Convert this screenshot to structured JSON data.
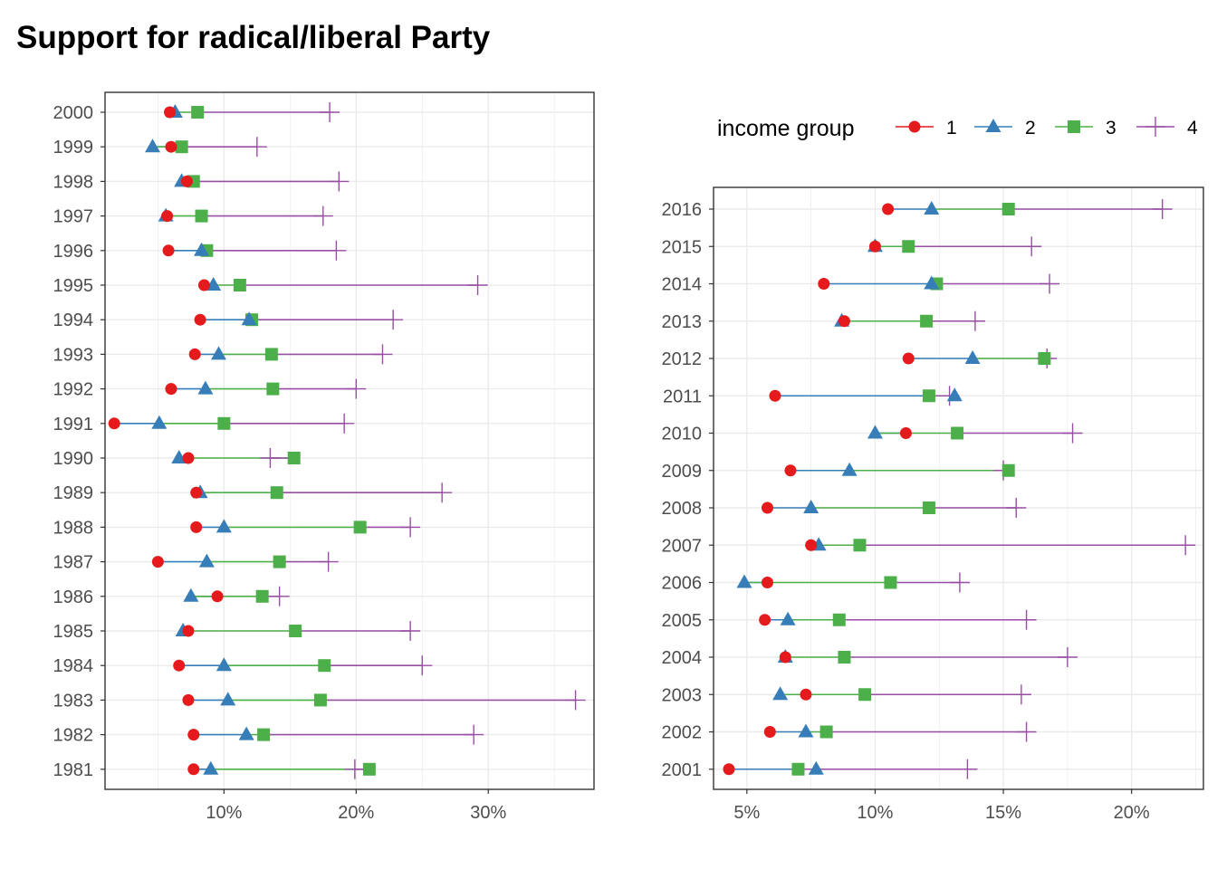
{
  "title": "Support for radical/liberal Party",
  "colors": {
    "1": "#E41A1C",
    "2": "#377EB8",
    "3": "#4DAF4A",
    "4": "#984EA3"
  },
  "legend": {
    "title": "income group",
    "items": [
      "1",
      "2",
      "3",
      "4"
    ]
  },
  "chart_data": [
    {
      "type": "dumbbell",
      "title": "",
      "xlabel": "",
      "ylabel": "",
      "xlim": [
        0.01,
        0.38
      ],
      "xticks": [
        0.1,
        0.2,
        0.3
      ],
      "xtick_labels": [
        "10%",
        "20%",
        "30%"
      ],
      "years": [
        "2000",
        "1999",
        "1998",
        "1997",
        "1996",
        "1995",
        "1994",
        "1993",
        "1992",
        "1991",
        "1990",
        "1989",
        "1988",
        "1987",
        "1986",
        "1985",
        "1984",
        "1983",
        "1982",
        "1981"
      ],
      "series": [
        {
          "name": "1",
          "shape": "circle",
          "values": [
            0.059,
            0.06,
            0.072,
            0.057,
            0.058,
            0.085,
            0.082,
            0.078,
            0.06,
            0.017,
            0.073,
            0.079,
            0.079,
            0.05,
            0.095,
            0.073,
            0.066,
            0.073,
            0.077,
            0.077
          ]
        },
        {
          "name": "2",
          "shape": "triangle",
          "values": [
            0.063,
            0.046,
            0.068,
            0.056,
            0.083,
            0.092,
            0.119,
            0.096,
            0.086,
            0.051,
            0.066,
            0.082,
            0.1,
            0.087,
            0.075,
            0.069,
            0.1,
            0.103,
            0.117,
            0.09
          ]
        },
        {
          "name": "3",
          "shape": "square",
          "values": [
            0.08,
            0.068,
            0.077,
            0.083,
            0.087,
            0.112,
            0.121,
            0.136,
            0.137,
            0.1,
            0.153,
            0.14,
            0.203,
            0.142,
            0.129,
            0.154,
            0.176,
            0.173,
            0.13,
            0.21
          ]
        },
        {
          "name": "4",
          "shape": "plus",
          "values": [
            0.18,
            0.125,
            0.187,
            0.175,
            0.185,
            0.292,
            0.228,
            0.22,
            0.2,
            0.191,
            0.135,
            0.265,
            0.241,
            0.179,
            0.142,
            0.241,
            0.25,
            0.366,
            0.289,
            0.199
          ]
        }
      ]
    },
    {
      "type": "dumbbell",
      "title": "",
      "xlabel": "",
      "ylabel": "",
      "xlim": [
        0.037,
        0.228
      ],
      "xticks": [
        0.05,
        0.1,
        0.15,
        0.2
      ],
      "xtick_labels": [
        "5%",
        "10%",
        "15%",
        "20%"
      ],
      "years": [
        "2016",
        "2015",
        "2014",
        "2013",
        "2012",
        "2011",
        "2010",
        "2009",
        "2008",
        "2007",
        "2006",
        "2005",
        "2004",
        "2003",
        "2002",
        "2001"
      ],
      "series": [
        {
          "name": "1",
          "shape": "circle",
          "values": [
            0.105,
            0.1,
            0.08,
            0.088,
            0.113,
            0.061,
            0.112,
            0.067,
            0.058,
            0.075,
            0.058,
            0.057,
            0.065,
            0.073,
            0.059,
            0.043
          ]
        },
        {
          "name": "2",
          "shape": "triangle",
          "values": [
            0.122,
            0.1,
            0.122,
            0.087,
            0.138,
            0.131,
            0.1,
            0.09,
            0.075,
            0.078,
            0.049,
            0.066,
            0.065,
            0.063,
            0.073,
            0.077
          ]
        },
        {
          "name": "3",
          "shape": "square",
          "values": [
            0.152,
            0.113,
            0.124,
            0.12,
            0.166,
            0.121,
            0.132,
            0.152,
            0.121,
            0.094,
            0.106,
            0.086,
            0.088,
            0.096,
            0.081,
            0.07
          ]
        },
        {
          "name": "4",
          "shape": "plus",
          "values": [
            0.212,
            0.161,
            0.168,
            0.139,
            0.167,
            0.129,
            0.177,
            0.15,
            0.155,
            0.221,
            0.133,
            0.159,
            0.175,
            0.157,
            0.159,
            0.136
          ]
        }
      ]
    }
  ]
}
